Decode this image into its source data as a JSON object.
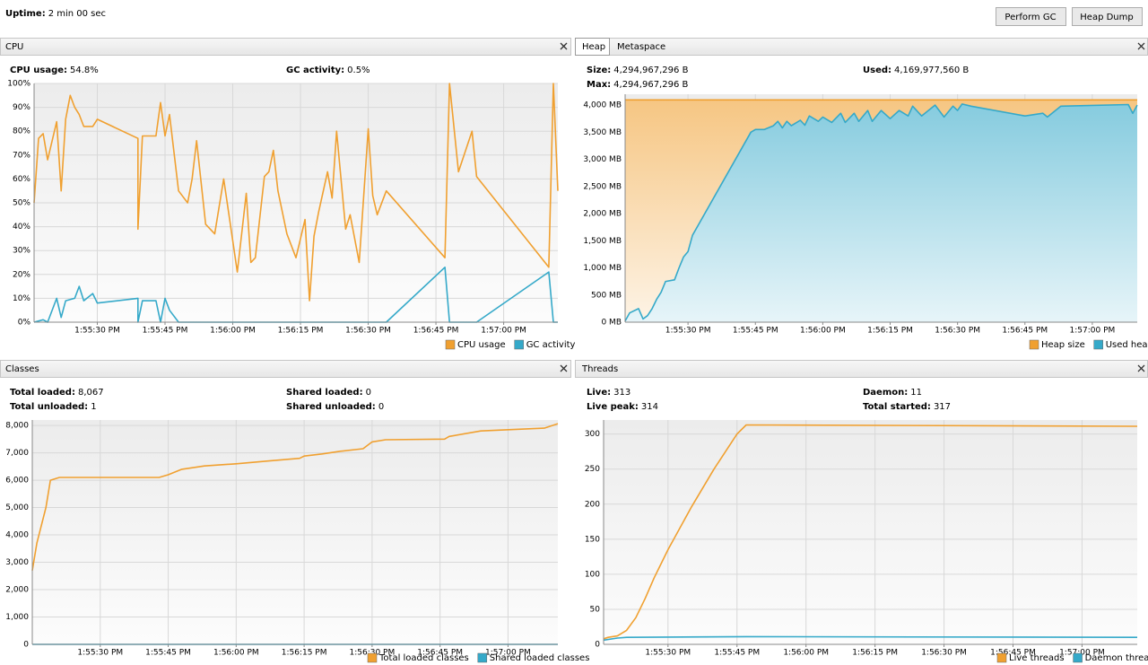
{
  "header": {
    "uptime": {
      "label": "Uptime:",
      "value": "2 min 00 sec"
    },
    "buttons": [
      "Perform GC",
      "Heap Dump"
    ]
  },
  "panels": [
    {
      "title": "CPU",
      "stats": [
        {
          "label": "CPU usage:",
          "value": "54.8%"
        },
        {
          "label": "GC activity:",
          "value": "0.5%"
        }
      ]
    },
    {
      "tabs": [
        "Heap",
        "Metaspace"
      ],
      "stats": [
        {
          "label": "Size:",
          "value": "4,294,967,296 B"
        },
        {
          "label": "Max:",
          "value": "4,294,967,296 B"
        },
        {
          "label": "Used:",
          "value": "4,169,977,560 B"
        }
      ]
    },
    {
      "title": "Classes",
      "stats": [
        {
          "label": "Total loaded:",
          "value": "8,067"
        },
        {
          "label": "Total unloaded:",
          "value": "1"
        },
        {
          "label": "Shared loaded:",
          "value": "0"
        },
        {
          "label": "Shared unloaded:",
          "value": "0"
        }
      ]
    },
    {
      "title": "Threads",
      "stats": [
        {
          "label": "Live:",
          "value": "313"
        },
        {
          "label": "Live peak:",
          "value": "314"
        },
        {
          "label": "Daemon:",
          "value": "11"
        },
        {
          "label": "Total started:",
          "value": "317"
        }
      ]
    }
  ],
  "chart_data": [
    {
      "type": "line",
      "grid": true,
      "xlim": [
        "1:55:16 PM",
        "1:57:12 PM"
      ],
      "xticks": [
        "1:55:30 PM",
        "1:55:45 PM",
        "1:56:00 PM",
        "1:56:15 PM",
        "1:56:30 PM",
        "1:56:45 PM",
        "1:57:00 PM"
      ],
      "ylim": [
        0,
        100
      ],
      "yticks": [
        {
          "value": 0,
          "label": "0%"
        },
        {
          "value": 10,
          "label": "10%"
        },
        {
          "value": 20,
          "label": "20%"
        },
        {
          "value": 30,
          "label": "30%"
        },
        {
          "value": 40,
          "label": "40%"
        },
        {
          "value": 50,
          "label": "50%"
        },
        {
          "value": 60,
          "label": "60%"
        },
        {
          "value": 70,
          "label": "70%"
        },
        {
          "value": 80,
          "label": "80%"
        },
        {
          "value": 90,
          "label": "90%"
        },
        {
          "value": 100,
          "label": "100%"
        }
      ],
      "series": [
        {
          "name": "CPU usage",
          "color": "#f0a030",
          "x": [
            "1:55:16 PM",
            "1:55:17 PM",
            "1:55:18 PM",
            "1:55:19 PM",
            "1:55:21 PM",
            "1:55:22 PM",
            "1:55:23 PM",
            "1:55:24 PM",
            "1:55:25 PM",
            "1:55:26 PM",
            "1:55:27 PM",
            "1:55:29 PM",
            "1:55:30 PM",
            "1:55:39 PM",
            "1:55:39 PM",
            "1:55:40 PM",
            "1:55:43 PM",
            "1:55:44 PM",
            "1:55:45 PM",
            "1:55:46 PM",
            "1:55:48 PM",
            "1:55:50 PM",
            "1:55:51 PM",
            "1:55:52 PM",
            "1:55:54 PM",
            "1:55:56 PM",
            "1:55:58 PM",
            "1:55:59 PM",
            "1:56:01 PM",
            "1:56:03 PM",
            "1:56:04 PM",
            "1:56:05 PM",
            "1:56:07 PM",
            "1:56:08 PM",
            "1:56:09 PM",
            "1:56:10 PM",
            "1:56:12 PM",
            "1:56:14 PM",
            "1:56:16 PM",
            "1:56:17 PM",
            "1:56:18 PM",
            "1:56:19 PM",
            "1:56:21 PM",
            "1:56:22 PM",
            "1:56:23 PM",
            "1:56:25 PM",
            "1:56:26 PM",
            "1:56:28 PM",
            "1:56:30 PM",
            "1:56:31 PM",
            "1:56:32 PM",
            "1:56:34 PM",
            "1:56:47 PM",
            "1:56:48 PM",
            "1:56:50 PM",
            "1:56:53 PM",
            "1:56:54 PM",
            "1:57:10 PM",
            "1:57:11 PM",
            "1:57:12 PM"
          ],
          "values": [
            50,
            77,
            79,
            68,
            84,
            55,
            85,
            95,
            90,
            87,
            82,
            82,
            85,
            77,
            39,
            78,
            78,
            92,
            78,
            87,
            55,
            50,
            60,
            76,
            41,
            37,
            60,
            47,
            21,
            54,
            25,
            27,
            61,
            63,
            72,
            55,
            37,
            27,
            43,
            9,
            36,
            46,
            63,
            52,
            80,
            39,
            45,
            25,
            81,
            53,
            45,
            55,
            27,
            100,
            63,
            80,
            61,
            23,
            100,
            55
          ]
        },
        {
          "name": "GC activity",
          "color": "#35a9c9",
          "x": [
            "1:55:16 PM",
            "1:55:18 PM",
            "1:55:19 PM",
            "1:55:21 PM",
            "1:55:22 PM",
            "1:55:23 PM",
            "1:55:25 PM",
            "1:55:26 PM",
            "1:55:27 PM",
            "1:55:29 PM",
            "1:55:30 PM",
            "1:55:39 PM",
            "1:55:39 PM",
            "1:55:40 PM",
            "1:55:43 PM",
            "1:55:44 PM",
            "1:55:45 PM",
            "1:55:46 PM",
            "1:55:48 PM",
            "1:56:34 PM",
            "1:56:47 PM",
            "1:56:48 PM",
            "1:56:54 PM",
            "1:57:10 PM",
            "1:57:11 PM",
            "1:57:12 PM"
          ],
          "values": [
            0,
            1,
            0,
            10,
            2,
            9,
            10,
            15,
            9,
            12,
            8,
            10,
            0,
            9,
            9,
            0,
            10,
            5,
            0,
            0,
            23,
            0,
            0,
            21,
            0,
            0
          ]
        }
      ]
    },
    {
      "type": "area",
      "grid": true,
      "xlim": [
        "1:55:16 PM",
        "1:57:10 PM"
      ],
      "xticks": [
        "1:55:30 PM",
        "1:55:45 PM",
        "1:56:00 PM",
        "1:56:15 PM",
        "1:56:30 PM",
        "1:56:45 PM",
        "1:57:00 PM"
      ],
      "ylim": [
        0,
        4200
      ],
      "yticks": [
        {
          "value": 0,
          "label": "0 MB"
        },
        {
          "value": 500,
          "label": "500 MB"
        },
        {
          "value": 1000,
          "label": "1,000 MB"
        },
        {
          "value": 1500,
          "label": "1,500 MB"
        },
        {
          "value": 2000,
          "label": "2,000 MB"
        },
        {
          "value": 2500,
          "label": "2,500 MB"
        },
        {
          "value": 3000,
          "label": "3,000 MB"
        },
        {
          "value": 3500,
          "label": "3,500 MB"
        },
        {
          "value": 4000,
          "label": "4,000 MB"
        }
      ],
      "series": [
        {
          "name": "Heap size",
          "color": "#f0a030",
          "x": [
            "1:55:16 PM",
            "1:57:10 PM"
          ],
          "values": [
            4096,
            4096
          ]
        },
        {
          "name": "Used heap",
          "color": "#35a9c9",
          "x": [
            "1:55:16 PM",
            "1:55:17 PM",
            "1:55:19 PM",
            "1:55:20 PM",
            "1:55:21 PM",
            "1:55:22 PM",
            "1:55:23 PM",
            "1:55:24 PM",
            "1:55:25 PM",
            "1:55:27 PM",
            "1:55:28 PM",
            "1:55:29 PM",
            "1:55:30 PM",
            "1:55:31 PM",
            "1:55:44 PM",
            "1:55:45 PM",
            "1:55:47 PM",
            "1:55:49 PM",
            "1:55:50 PM",
            "1:55:51 PM",
            "1:55:52 PM",
            "1:55:53 PM",
            "1:55:55 PM",
            "1:55:56 PM",
            "1:55:57 PM",
            "1:55:59 PM",
            "1:56:00 PM",
            "1:56:02 PM",
            "1:56:04 PM",
            "1:56:05 PM",
            "1:56:07 PM",
            "1:56:08 PM",
            "1:56:10 PM",
            "1:56:11 PM",
            "1:56:13 PM",
            "1:56:15 PM",
            "1:56:17 PM",
            "1:56:19 PM",
            "1:56:20 PM",
            "1:56:22 PM",
            "1:56:25 PM",
            "1:56:27 PM",
            "1:56:29 PM",
            "1:56:30 PM",
            "1:56:31 PM",
            "1:56:33 PM",
            "1:56:45 PM",
            "1:56:49 PM",
            "1:56:50 PM",
            "1:56:53 PM",
            "1:57:08 PM",
            "1:57:09 PM",
            "1:57:10 PM"
          ],
          "values": [
            20,
            170,
            250,
            60,
            120,
            250,
            420,
            550,
            750,
            780,
            1000,
            1200,
            1300,
            1600,
            3500,
            3550,
            3550,
            3620,
            3700,
            3580,
            3700,
            3620,
            3720,
            3630,
            3800,
            3700,
            3780,
            3680,
            3850,
            3680,
            3850,
            3700,
            3900,
            3700,
            3900,
            3750,
            3900,
            3800,
            3980,
            3800,
            4000,
            3780,
            3980,
            3900,
            4020,
            3980,
            3800,
            3850,
            3780,
            3980,
            4010,
            3850,
            4000
          ]
        }
      ]
    },
    {
      "type": "line",
      "grid": true,
      "xlim": [
        "1:55:15 PM",
        "1:57:11 PM"
      ],
      "xticks": [
        "1:55:30 PM",
        "1:55:45 PM",
        "1:56:00 PM",
        "1:56:15 PM",
        "1:56:30 PM",
        "1:56:45 PM",
        "1:57:00 PM"
      ],
      "ylim": [
        0,
        8200
      ],
      "yticks": [
        0,
        {
          "value": 1000,
          "label": "1,000"
        },
        {
          "value": 2000,
          "label": "2,000"
        },
        {
          "value": 3000,
          "label": "3,000"
        },
        {
          "value": 4000,
          "label": "4,000"
        },
        {
          "value": 5000,
          "label": "5,000"
        },
        {
          "value": 6000,
          "label": "6,000"
        },
        {
          "value": 7000,
          "label": "7,000"
        },
        {
          "value": 8000,
          "label": "8,000"
        }
      ],
      "series": [
        {
          "name": "Total loaded classes",
          "color": "#f0a030",
          "x": [
            "1:55:15 PM",
            "1:55:16 PM",
            "1:55:18 PM",
            "1:55:19 PM",
            "1:55:21 PM",
            "1:55:43 PM",
            "1:55:45 PM",
            "1:55:48 PM",
            "1:55:53 PM",
            "1:56:00 PM",
            "1:56:07 PM",
            "1:56:14 PM",
            "1:56:15 PM",
            "1:56:19 PM",
            "1:56:23 PM",
            "1:56:28 PM",
            "1:56:30 PM",
            "1:56:33 PM",
            "1:56:46 PM",
            "1:56:47 PM",
            "1:56:54 PM",
            "1:57:08 PM",
            "1:57:11 PM"
          ],
          "values": [
            2700,
            3700,
            5000,
            6000,
            6100,
            6100,
            6200,
            6400,
            6520,
            6600,
            6700,
            6800,
            6880,
            6960,
            7060,
            7150,
            7400,
            7480,
            7500,
            7600,
            7800,
            7900,
            8067
          ]
        },
        {
          "name": "Shared loaded classes",
          "color": "#35a9c9",
          "x": [
            "1:55:15 PM",
            "1:57:11 PM"
          ],
          "values": [
            0,
            0
          ]
        }
      ]
    },
    {
      "type": "line",
      "grid": true,
      "xlim": [
        "1:55:16 PM",
        "1:57:12 PM"
      ],
      "xticks": [
        "1:55:30 PM",
        "1:55:45 PM",
        "1:56:00 PM",
        "1:56:15 PM",
        "1:56:30 PM",
        "1:56:45 PM",
        "1:57:00 PM"
      ],
      "ylim": [
        0,
        320
      ],
      "yticks": [
        0,
        50,
        100,
        150,
        200,
        250,
        300
      ],
      "series": [
        {
          "name": "Live threads",
          "color": "#f0a030",
          "x": [
            "1:55:16 PM",
            "1:55:17 PM",
            "1:55:19 PM",
            "1:55:21 PM",
            "1:55:23 PM",
            "1:55:25 PM",
            "1:55:27 PM",
            "1:55:30 PM",
            "1:55:35 PM",
            "1:55:40 PM",
            "1:55:45 PM",
            "1:55:47 PM",
            "1:57:12 PM"
          ],
          "values": [
            8,
            10,
            12,
            20,
            38,
            65,
            95,
            135,
            195,
            250,
            300,
            313,
            311
          ]
        },
        {
          "name": "Daemon threads",
          "color": "#35a9c9",
          "x": [
            "1:55:16 PM",
            "1:55:19 PM",
            "1:55:21 PM",
            "1:55:47 PM",
            "1:57:12 PM"
          ],
          "values": [
            6,
            9,
            10,
            11,
            10
          ]
        }
      ]
    }
  ]
}
